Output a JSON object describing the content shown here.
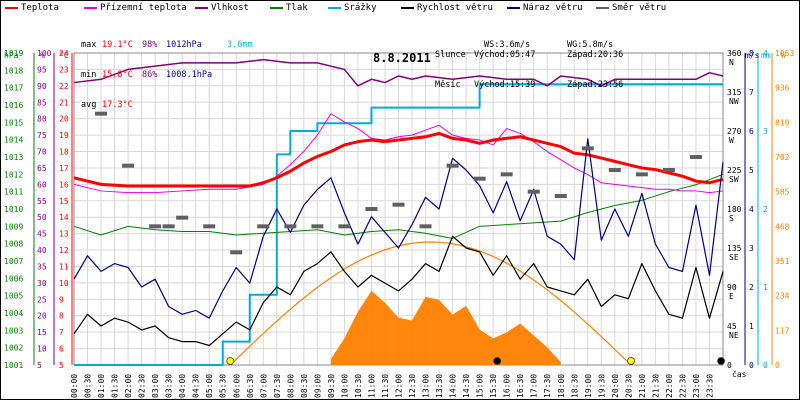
{
  "legend": [
    {
      "label": "Teplota",
      "color": "#ff0000"
    },
    {
      "label": "Přízemní teplota",
      "color": "#e800e8"
    },
    {
      "label": "Vlhkost",
      "color": "#800080"
    },
    {
      "label": "Tlak",
      "color": "#008000"
    },
    {
      "label": "Srážky",
      "color": "#00aadd"
    },
    {
      "label": "Rychlost větru",
      "color": "#000000"
    },
    {
      "label": "Náraz větru",
      "color": "#000080"
    },
    {
      "label": "Směr větru",
      "color": "#606060"
    }
  ],
  "stats": {
    "max_label": "max",
    "max_temp": "19.1°C",
    "max_hum": "98%",
    "max_press": "1012hPa",
    "max_rain": "3.6mm",
    "min_label": "min",
    "min_temp": "15.8°C",
    "min_hum": "86%",
    "min_press": "1008.1hPa",
    "avg_label": "avg",
    "avg_temp": "17.3°C",
    "ws_label": "WS:3.6m/s",
    "wg_label": "WG:5.8m/s",
    "sun_label": "Slunce",
    "sun_rise": "Východ:05:47",
    "sun_set": "Západ:20:36",
    "moon_label": "Měsíc",
    "moon_rise": "Východ:15:39",
    "moon_set": "Západ:23:56"
  },
  "units": {
    "hpa": "hPa",
    "percent": "%",
    "celsius": "°C",
    "deg": "°",
    "ms": "m/s",
    "mm": "mm",
    "w": "W",
    "time": "čas"
  },
  "colors": {
    "axis_hpa": "#008000",
    "axis_pct": "#800080",
    "axis_c": "#ff0000",
    "axis_deg": "#606060",
    "axis_ms": "#000080",
    "axis_mm": "#00aadd",
    "axis_w": "#ff8000",
    "solar_fill": "#ff8000"
  },
  "chart_data": {
    "type": "line",
    "title": "8.8.2011",
    "x_ticks": [
      "00:00",
      "00:30",
      "01:00",
      "01:30",
      "02:00",
      "02:30",
      "03:00",
      "03:30",
      "04:00",
      "04:30",
      "05:00",
      "05:30",
      "06:00",
      "06:30",
      "07:00",
      "07:30",
      "08:00",
      "08:30",
      "09:00",
      "09:30",
      "10:00",
      "10:30",
      "11:00",
      "11:30",
      "12:00",
      "12:30",
      "13:00",
      "13:30",
      "14:00",
      "14:30",
      "15:00",
      "15:30",
      "16:00",
      "16:30",
      "17:00",
      "17:30",
      "18:00",
      "18:30",
      "19:00",
      "19:30",
      "20:00",
      "20:30",
      "21:00",
      "21:30",
      "22:00",
      "22:30",
      "23:00",
      "23:30"
    ],
    "xlabel": "čas",
    "axes": {
      "pressure_hPa": {
        "ticks": [
          1001,
          1002,
          1003,
          1004,
          1005,
          1006,
          1007,
          1008,
          1009,
          1010,
          1011,
          1012,
          1013,
          1014,
          1015,
          1016,
          1017,
          1018,
          1019
        ]
      },
      "humidity_pct": {
        "ticks": [
          5,
          10,
          15,
          20,
          25,
          30,
          35,
          40,
          45,
          50,
          55,
          60,
          65,
          70,
          75,
          80,
          85,
          90,
          95,
          100
        ]
      },
      "temperature_C": {
        "ticks": [
          5,
          6,
          7,
          8,
          9,
          10,
          11,
          12,
          13,
          14,
          15,
          16,
          17,
          18,
          19,
          20,
          21,
          22,
          23,
          24
        ]
      },
      "wind_dir_deg": {
        "ticks": [
          {
            "v": "360",
            "d": "N"
          },
          {
            "v": "315",
            "d": "NW"
          },
          {
            "v": "270",
            "d": "W"
          },
          {
            "v": "225",
            "d": "SW"
          },
          {
            "v": "180",
            "d": "S"
          },
          {
            "v": "135",
            "d": "SE"
          },
          {
            "v": "90",
            "d": "E"
          },
          {
            "v": "45",
            "d": "NE"
          },
          {
            "v": "0",
            "d": ""
          }
        ]
      },
      "wind_ms": {
        "ticks": [
          0,
          1,
          2,
          3,
          4,
          5,
          6,
          7,
          8
        ]
      },
      "rain_mm": {
        "ticks": [
          0,
          1,
          2,
          3,
          4
        ]
      },
      "solar_W": {
        "ticks": [
          0,
          117,
          234,
          351,
          468,
          585,
          702,
          819,
          936,
          1053
        ]
      }
    },
    "series": [
      {
        "name": "Teplota",
        "axis": "temperature_C",
        "x": [
          0,
          1,
          2,
          3,
          4,
          5,
          6,
          6.5,
          7,
          7.5,
          8,
          8.5,
          9,
          9.5,
          10,
          10.5,
          11,
          11.5,
          12,
          12.5,
          13,
          13.5,
          14,
          14.5,
          15,
          15.5,
          16,
          16.5,
          17,
          17.5,
          18,
          18.5,
          19,
          19.5,
          20,
          20.5,
          21,
          21.5,
          22,
          22.5,
          23,
          23.5,
          24
        ],
        "y": [
          16.4,
          16.0,
          15.9,
          15.9,
          15.9,
          15.9,
          15.9,
          15.9,
          16.1,
          16.4,
          16.8,
          17.3,
          17.7,
          18.0,
          18.4,
          18.6,
          18.7,
          18.6,
          18.7,
          18.8,
          18.9,
          19.1,
          18.8,
          18.7,
          18.5,
          18.7,
          18.8,
          18.9,
          18.7,
          18.5,
          18.3,
          17.9,
          17.8,
          17.6,
          17.4,
          17.2,
          17.0,
          16.9,
          16.7,
          16.5,
          16.2,
          16.1,
          16.3
        ]
      },
      {
        "name": "Přízemní teplota",
        "axis": "temperature_C",
        "x": [
          0,
          1,
          2,
          3,
          4,
          5,
          6,
          7,
          7.5,
          8,
          8.5,
          9,
          9.5,
          10,
          10.5,
          11,
          11.5,
          12,
          12.5,
          13,
          13.5,
          14,
          14.5,
          15,
          15.5,
          16,
          16.5,
          17,
          17.5,
          18,
          18.5,
          19,
          19.5,
          20,
          20.5,
          21,
          21.5,
          22,
          22.5,
          23,
          23.5,
          24
        ],
        "y": [
          16.0,
          15.6,
          15.5,
          15.5,
          15.6,
          15.7,
          15.7,
          16.0,
          16.5,
          17.2,
          18.0,
          19.0,
          20.3,
          19.8,
          19.4,
          18.8,
          18.7,
          18.9,
          19.0,
          19.3,
          19.6,
          19.0,
          18.8,
          18.7,
          18.4,
          19.4,
          19.1,
          18.6,
          18.0,
          17.5,
          17.0,
          16.6,
          16.1,
          16.0,
          15.9,
          15.8,
          15.7,
          15.7,
          15.6,
          15.6,
          15.5,
          15.6
        ]
      },
      {
        "name": "Vlhkost",
        "axis": "humidity_pct",
        "x": [
          0,
          1,
          2,
          3,
          4,
          5,
          6,
          7,
          8,
          9,
          10,
          10.5,
          11,
          11.5,
          12,
          12.5,
          13,
          14,
          15,
          16,
          17,
          17.5,
          18,
          19,
          19.5,
          20,
          21,
          22,
          23,
          23.5,
          24
        ],
        "y": [
          91,
          92,
          95,
          96,
          97,
          97,
          97,
          98,
          97,
          97,
          95,
          90,
          92,
          91,
          93,
          92,
          93,
          92,
          93,
          92,
          92,
          90,
          93,
          92,
          90,
          92,
          92,
          92,
          92,
          94,
          93
        ]
      },
      {
        "name": "Tlak",
        "axis": "pressure_hPa",
        "x": [
          0,
          1,
          2,
          3,
          4,
          5,
          6,
          7,
          8,
          9,
          10,
          11,
          12,
          13,
          14,
          15,
          16,
          17,
          18,
          19,
          20,
          21,
          22,
          22.5,
          23,
          23.5,
          24
        ],
        "y": [
          1009.0,
          1008.5,
          1009.0,
          1008.8,
          1008.7,
          1008.7,
          1008.5,
          1008.6,
          1008.7,
          1008.8,
          1008.5,
          1008.7,
          1008.8,
          1008.6,
          1008.3,
          1009.0,
          1009.1,
          1009.2,
          1009.3,
          1009.8,
          1010.2,
          1010.5,
          1011.0,
          1011.2,
          1011.4,
          1011.7,
          1012.0
        ]
      },
      {
        "name": "Srážky",
        "axis": "rain_mm",
        "x": [
          0,
          5.5,
          5.5,
          6.5,
          6.5,
          7.5,
          7.5,
          8,
          8,
          9,
          9,
          11,
          11,
          15,
          15,
          16,
          16,
          24
        ],
        "y": [
          0,
          0,
          0.3,
          0.3,
          0.9,
          0.9,
          2.7,
          2.7,
          3.0,
          3.0,
          3.1,
          3.1,
          3.3,
          3.3,
          3.6,
          3.6,
          3.6,
          3.6
        ]
      },
      {
        "name": "Rychlost větru",
        "axis": "wind_ms",
        "x": [
          0,
          0.5,
          1,
          1.5,
          2,
          2.5,
          3,
          3.5,
          4,
          4.5,
          5,
          5.5,
          6,
          6.5,
          7,
          7.5,
          8,
          8.5,
          9,
          9.5,
          10,
          10.5,
          11,
          11.5,
          12,
          12.5,
          13,
          13.5,
          14,
          14.5,
          15,
          15.5,
          16,
          16.5,
          17,
          17.5,
          18,
          18.5,
          19,
          19.5,
          20,
          20.5,
          21,
          21.5,
          22,
          22.5,
          23,
          23.5,
          24
        ],
        "y": [
          0.8,
          1.3,
          1.0,
          1.2,
          1.1,
          0.9,
          1.0,
          0.7,
          0.6,
          0.6,
          0.5,
          0.8,
          1.1,
          0.9,
          1.6,
          2.0,
          1.8,
          2.4,
          2.6,
          2.9,
          2.4,
          2.0,
          2.3,
          2.1,
          1.9,
          2.2,
          2.6,
          2.4,
          3.3,
          3.0,
          2.9,
          2.3,
          2.8,
          2.2,
          2.6,
          2.0,
          1.9,
          1.8,
          2.2,
          1.5,
          1.8,
          1.7,
          2.6,
          1.9,
          1.3,
          1.2,
          2.5,
          1.2,
          2.4
        ]
      },
      {
        "name": "Náraz větru",
        "axis": "wind_ms",
        "x": [
          0,
          0.5,
          1,
          1.5,
          2,
          2.5,
          3,
          3.5,
          4,
          4.5,
          5,
          5.5,
          6,
          6.5,
          7,
          7.5,
          8,
          8.5,
          9,
          9.5,
          10,
          10.5,
          11,
          11.5,
          12,
          12.5,
          13,
          13.5,
          14,
          14.5,
          15,
          15.5,
          16,
          16.5,
          17,
          17.5,
          18,
          18.5,
          19,
          19.5,
          20,
          20.5,
          21,
          21.5,
          22,
          22.5,
          23,
          23.5,
          24
        ],
        "y": [
          2.2,
          2.8,
          2.4,
          2.6,
          2.5,
          2.0,
          2.2,
          1.5,
          1.3,
          1.4,
          1.2,
          1.9,
          2.5,
          2.1,
          3.3,
          4.0,
          3.4,
          4.1,
          4.5,
          4.8,
          3.9,
          3.1,
          3.8,
          3.4,
          3.0,
          3.6,
          4.3,
          4.0,
          5.3,
          5.0,
          4.6,
          3.9,
          4.7,
          3.7,
          4.5,
          3.3,
          3.1,
          2.7,
          5.8,
          3.2,
          4.0,
          3.3,
          4.4,
          3.1,
          2.5,
          2.4,
          4.1,
          2.3,
          5.2
        ]
      },
      {
        "name": "Směr větru",
        "axis": "wind_dir_deg",
        "x": [
          1,
          2,
          3,
          3.5,
          4,
          5,
          6,
          7,
          8,
          9,
          10,
          11,
          12,
          13,
          14,
          15,
          16,
          17,
          18,
          19,
          20,
          21,
          22,
          23
        ],
        "y": [
          290,
          230,
          160,
          160,
          170,
          160,
          130,
          160,
          160,
          160,
          160,
          180,
          185,
          160,
          230,
          215,
          220,
          200,
          195,
          250,
          225,
          220,
          225,
          240
        ]
      },
      {
        "name": "Solar",
        "axis": "solar_W",
        "x": [
          9.5,
          10,
          10.5,
          11,
          11.5,
          12,
          12.5,
          13,
          13.5,
          14,
          14.5,
          15,
          15.5,
          16,
          16.5,
          17,
          17.5,
          18
        ],
        "y": [
          20,
          90,
          180,
          250,
          210,
          160,
          150,
          230,
          220,
          170,
          200,
          120,
          90,
          110,
          140,
          100,
          60,
          10
        ]
      }
    ],
    "markers": [
      {
        "name": "sunrise",
        "x": 5.78,
        "color": "#ffff00"
      },
      {
        "name": "moonrise",
        "x": 15.65,
        "color": "#000000"
      },
      {
        "name": "sunset",
        "x": 20.6,
        "color": "#ffff00"
      },
      {
        "name": "moonset",
        "x": 23.93,
        "color": "#000000"
      }
    ]
  }
}
